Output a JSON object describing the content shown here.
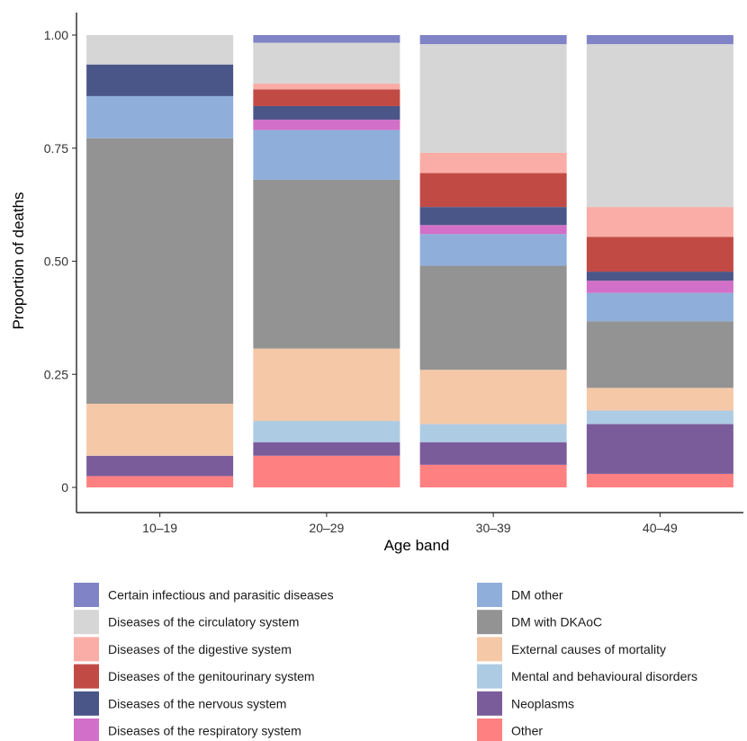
{
  "chart_data": {
    "type": "bar",
    "stacked": true,
    "xlabel": "Age band",
    "ylabel": "Proportion of deaths",
    "ylim": [
      0,
      1
    ],
    "y_ticks": [
      0,
      0.25,
      0.5,
      0.75,
      1.0
    ],
    "y_tick_labels": [
      "0",
      "0.25",
      "0.50",
      "0.75",
      "1.00"
    ],
    "categories": [
      "10–19",
      "20–29",
      "30–39",
      "40–49"
    ],
    "grid": false,
    "legend_position": "bottom",
    "series": [
      {
        "name": "Other",
        "color": "#FF8080",
        "values": [
          0.025,
          0.07,
          0.05,
          0.03
        ]
      },
      {
        "name": "Neoplasms",
        "color": "#7B5C9B",
        "values": [
          0.045,
          0.03,
          0.05,
          0.11
        ]
      },
      {
        "name": "Mental and behavioural disorders",
        "color": "#AECBE4",
        "values": [
          0.0,
          0.047,
          0.04,
          0.03
        ]
      },
      {
        "name": "External causes of mortality",
        "color": "#F5C8A8",
        "values": [
          0.115,
          0.16,
          0.12,
          0.05
        ]
      },
      {
        "name": "DM with DKAoC",
        "color": "#939393",
        "values": [
          0.587,
          0.373,
          0.23,
          0.147
        ]
      },
      {
        "name": "DM other",
        "color": "#8FAFDA",
        "values": [
          0.093,
          0.11,
          0.07,
          0.063
        ]
      },
      {
        "name": "Diseases of the respiratory system",
        "color": "#D26FC8",
        "values": [
          0.0,
          0.023,
          0.02,
          0.027
        ]
      },
      {
        "name": "Diseases of the nervous system",
        "color": "#4B5688",
        "values": [
          0.07,
          0.03,
          0.04,
          0.02
        ]
      },
      {
        "name": "Diseases of the genitourinary system",
        "color": "#C24A45",
        "values": [
          0.0,
          0.037,
          0.075,
          0.077
        ]
      },
      {
        "name": "Diseases of the digestive system",
        "color": "#F9ADA6",
        "values": [
          0.0,
          0.013,
          0.045,
          0.066
        ]
      },
      {
        "name": "Diseases of the circulatory system",
        "color": "#D6D6D6",
        "values": [
          0.065,
          0.09,
          0.24,
          0.36
        ]
      },
      {
        "name": "Certain infectious and parasitic diseases",
        "color": "#8084C6",
        "values": [
          0.0,
          0.017,
          0.02,
          0.02
        ]
      }
    ],
    "legend_order": [
      "Certain infectious and parasitic diseases",
      "Diseases of the circulatory system",
      "Diseases of the digestive system",
      "Diseases of the genitourinary system",
      "Diseases of the nervous system",
      "Diseases of the respiratory system",
      "DM other",
      "DM with DKAoC",
      "External causes of mortality",
      "Mental and behavioural disorders",
      "Neoplasms",
      "Other"
    ]
  }
}
